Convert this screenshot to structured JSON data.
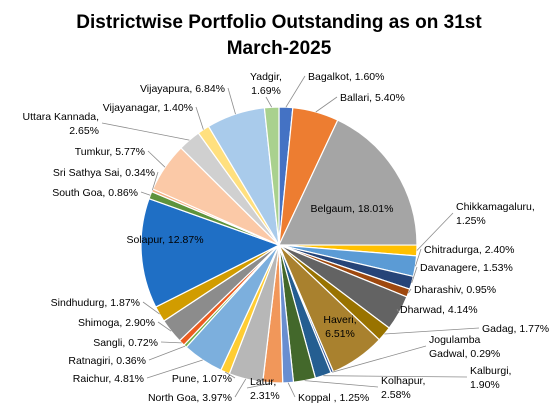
{
  "chart_data": {
    "type": "pie",
    "title_lines": [
      "Districtwise  Portfolio  Outstanding  as on 31st",
      "March-2025"
    ],
    "categories": [
      "Bagalkot",
      "Ballari",
      "Belgaum",
      "Chikkamagaluru",
      "Chitradurga",
      "Davanagere",
      "Dharashiv",
      "Dharwad",
      "Gadag",
      "Haveri",
      "Jogulamba Gadwal",
      "Kalburgi",
      "Kolhapur",
      "Koppal",
      "Latur",
      "North Goa",
      "Pune",
      "Raichur",
      "Ratnagiri",
      "Sangli",
      "Shimoga",
      "Sindhudurg",
      "Solapur",
      "South Goa",
      "Sri Sathya Sai",
      "Tumkur",
      "Uttara Kannada",
      "Vijayanagar",
      "Vijayapura",
      "Yadgir"
    ],
    "values": [
      1.6,
      5.4,
      18.01,
      1.25,
      2.4,
      1.53,
      0.95,
      4.14,
      1.77,
      6.51,
      0.29,
      1.9,
      2.58,
      1.25,
      2.31,
      3.97,
      1.07,
      4.81,
      0.36,
      0.72,
      2.9,
      1.87,
      12.87,
      0.86,
      0.34,
      5.77,
      2.65,
      1.4,
      6.84,
      1.69
    ],
    "labels": [
      [
        "Bagalkot, 1.60%"
      ],
      [
        "Ballari, 5.40%"
      ],
      [
        "Belgaum, 18.01%"
      ],
      [
        "Chikkamagaluru,",
        "1.25%"
      ],
      [
        "Chitradurga,  2.40%"
      ],
      [
        "Davanagere, 1.53%"
      ],
      [
        "Dharashiv, 0.95%"
      ],
      [
        "Dharwad, 4.14%"
      ],
      [
        "Gadag, 1.77%"
      ],
      [
        "Haveri,",
        "6.51%"
      ],
      [
        "Jogulamba",
        "Gadwal, 0.29%"
      ],
      [
        "Kalburgi,",
        "1.90%"
      ],
      [
        "Kolhapur,",
        "2.58%"
      ],
      [
        "Koppal , 1.25%"
      ],
      [
        "Latur,",
        "2.31%"
      ],
      [
        "North Goa, 3.97%"
      ],
      [
        "Pune, 1.07%"
      ],
      [
        "Raichur, 4.81%"
      ],
      [
        "Ratnagiri, 0.36%"
      ],
      [
        "Sangli, 0.72%"
      ],
      [
        "Shimoga, 2.90%"
      ],
      [
        "Sindhudurg,  1.87%"
      ],
      [
        "Solapur, 12.87%"
      ],
      [
        "South Goa, 0.86%"
      ],
      [
        "Sri Sathya Sai, 0.34%"
      ],
      [
        "Tumkur, 5.77%"
      ],
      [
        "Uttara Kannada,",
        "2.65%"
      ],
      [
        "Vijayanagar, 1.40%"
      ],
      [
        "Vijayapura, 6.84%"
      ],
      [
        "Yadgir,",
        "1.69%"
      ]
    ],
    "colors": [
      "#4472C4",
      "#ED7D31",
      "#A5A5A5",
      "#FFC000",
      "#5B9BD5",
      "#264478",
      "#9E480E",
      "#636363",
      "#997300",
      "#A9812E",
      "#2F5597",
      "#255E91",
      "#43682B",
      "#698ED0",
      "#F1975A",
      "#B7B7B7",
      "#FFCD33",
      "#7CAFDD",
      "#70AD47",
      "#EB5C20",
      "#8C8C8C",
      "#D19C00",
      "#1F6FC5",
      "#5E933C",
      "#F4B183",
      "#FBC9A7",
      "#D0D0D0",
      "#FFE07F",
      "#A9CBEB",
      "#A9D18E"
    ],
    "start_angle_deg": 0,
    "direction": "clockwise",
    "legend": "none",
    "data_labels": "outside-with-leader-lines"
  }
}
